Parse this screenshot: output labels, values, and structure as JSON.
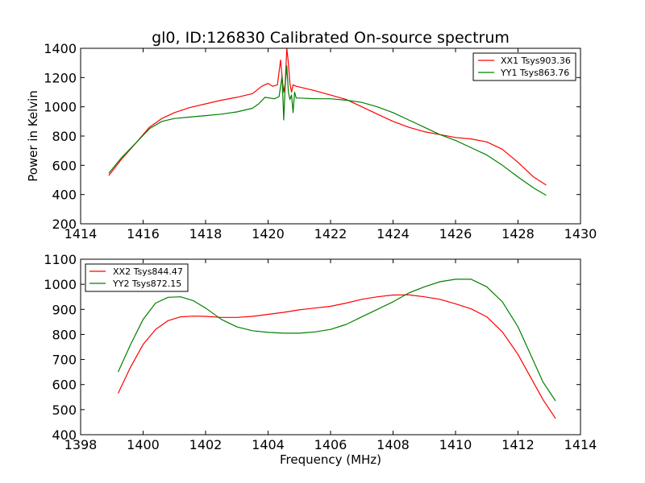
{
  "chart_data": [
    {
      "type": "line",
      "title": "gl0, ID:126830 Calibrated On-source spectrum",
      "xlabel": "",
      "ylabel": "Power in Kelvin",
      "xlim": [
        1414,
        1430
      ],
      "ylim": [
        200,
        1400
      ],
      "xticks": [
        1414,
        1416,
        1418,
        1420,
        1422,
        1424,
        1426,
        1428,
        1430
      ],
      "yticks": [
        200,
        400,
        600,
        800,
        1000,
        1200,
        1400
      ],
      "legend_position": "top-right",
      "series": [
        {
          "name": "XX1 Tsys903.36",
          "color": "#ff0000",
          "x": [
            1414.9,
            1415.3,
            1415.8,
            1416.2,
            1416.6,
            1417.0,
            1417.5,
            1418.0,
            1418.5,
            1419.0,
            1419.5,
            1419.8,
            1420.0,
            1420.15,
            1420.3,
            1420.4,
            1420.45,
            1420.5,
            1420.55,
            1420.6,
            1420.65,
            1420.7,
            1420.75,
            1420.8,
            1420.9,
            1421.0,
            1421.5,
            1422.0,
            1422.5,
            1423.0,
            1423.5,
            1424.0,
            1424.5,
            1425.0,
            1425.5,
            1426.0,
            1426.5,
            1427.0,
            1427.5,
            1428.0,
            1428.5,
            1428.9
          ],
          "y": [
            530,
            640,
            760,
            860,
            920,
            960,
            995,
            1020,
            1045,
            1065,
            1090,
            1140,
            1160,
            1140,
            1150,
            1320,
            1200,
            1100,
            1160,
            1400,
            1300,
            1160,
            1100,
            1150,
            1140,
            1135,
            1110,
            1080,
            1050,
            1000,
            950,
            900,
            860,
            830,
            810,
            790,
            780,
            760,
            710,
            620,
            520,
            465
          ]
        },
        {
          "name": "YY1 Tsys863.76",
          "color": "#008000",
          "x": [
            1414.9,
            1415.3,
            1415.8,
            1416.2,
            1416.6,
            1417.0,
            1417.5,
            1418.0,
            1418.5,
            1419.0,
            1419.5,
            1419.7,
            1419.9,
            1420.2,
            1420.35,
            1420.45,
            1420.5,
            1420.55,
            1420.6,
            1420.65,
            1420.7,
            1420.75,
            1420.8,
            1420.85,
            1420.9,
            1421.0,
            1421.5,
            1422.0,
            1422.5,
            1423.0,
            1423.5,
            1424.0,
            1424.5,
            1425.0,
            1425.5,
            1426.0,
            1426.5,
            1427.0,
            1427.5,
            1428.0,
            1428.5,
            1428.9
          ],
          "y": [
            545,
            650,
            760,
            850,
            900,
            920,
            930,
            940,
            950,
            965,
            990,
            1020,
            1065,
            1055,
            1070,
            1210,
            910,
            1150,
            1280,
            1100,
            1050,
            1080,
            960,
            1100,
            1060,
            1060,
            1055,
            1055,
            1045,
            1030,
            1000,
            960,
            910,
            860,
            810,
            770,
            720,
            670,
            600,
            520,
            445,
            395
          ]
        }
      ]
    },
    {
      "type": "line",
      "title": "",
      "xlabel": "Frequency (MHz)",
      "ylabel": "",
      "xlim": [
        1398,
        1414
      ],
      "ylim": [
        400,
        1100
      ],
      "xticks": [
        1398,
        1400,
        1402,
        1404,
        1406,
        1408,
        1410,
        1412,
        1414
      ],
      "yticks": [
        400,
        500,
        600,
        700,
        800,
        900,
        1000,
        1100
      ],
      "legend_position": "top-left",
      "series": [
        {
          "name": "XX2 Tsys844.47",
          "color": "#ff0000",
          "x": [
            1399.2,
            1399.6,
            1400.0,
            1400.4,
            1400.8,
            1401.2,
            1401.6,
            1402.0,
            1402.5,
            1403.0,
            1403.5,
            1404.0,
            1404.5,
            1405.0,
            1405.5,
            1406.0,
            1406.5,
            1407.0,
            1407.5,
            1408.0,
            1408.5,
            1409.0,
            1409.5,
            1410.0,
            1410.5,
            1411.0,
            1411.5,
            1412.0,
            1412.4,
            1412.8,
            1413.2
          ],
          "y": [
            565,
            670,
            760,
            820,
            855,
            870,
            873,
            872,
            868,
            868,
            872,
            880,
            888,
            898,
            905,
            912,
            925,
            940,
            950,
            957,
            958,
            950,
            940,
            922,
            902,
            870,
            810,
            720,
            630,
            540,
            465
          ]
        },
        {
          "name": "YY2 Tsys872.15",
          "color": "#008000",
          "x": [
            1399.2,
            1399.6,
            1400.0,
            1400.4,
            1400.8,
            1401.2,
            1401.6,
            1402.0,
            1402.5,
            1403.0,
            1403.5,
            1404.0,
            1404.5,
            1405.0,
            1405.5,
            1406.0,
            1406.5,
            1407.0,
            1407.5,
            1408.0,
            1408.5,
            1409.0,
            1409.5,
            1410.0,
            1410.5,
            1411.0,
            1411.5,
            1412.0,
            1412.4,
            1412.8,
            1413.2
          ],
          "y": [
            650,
            760,
            860,
            925,
            948,
            950,
            935,
            905,
            860,
            830,
            815,
            808,
            805,
            805,
            810,
            820,
            840,
            870,
            900,
            930,
            965,
            990,
            1010,
            1020,
            1020,
            990,
            930,
            830,
            720,
            610,
            535
          ]
        }
      ]
    }
  ]
}
